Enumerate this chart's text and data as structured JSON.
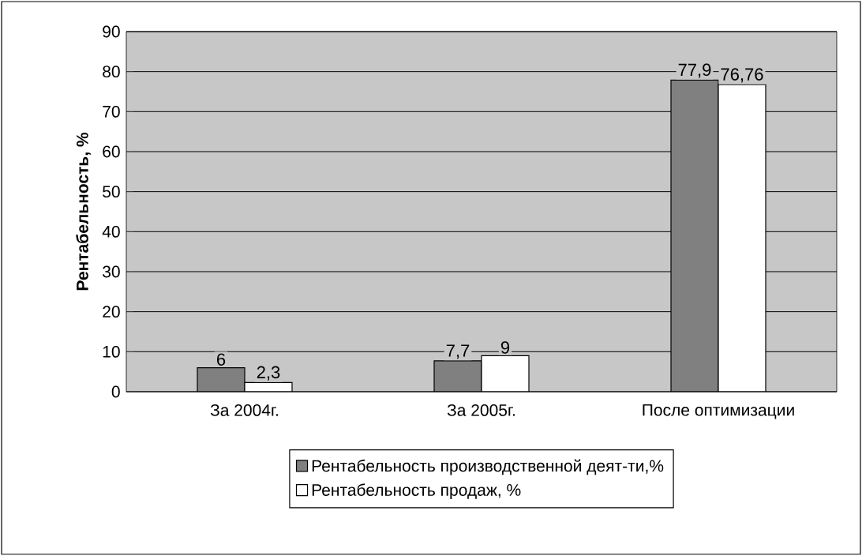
{
  "chart_data": {
    "type": "bar",
    "categories": [
      "За 2004г.",
      "За 2005г.",
      "После оптимизации"
    ],
    "ylabel": "Рентабельность, %",
    "ylim": [
      0,
      90
    ],
    "yticks": [
      0,
      10,
      20,
      30,
      40,
      50,
      60,
      70,
      80,
      90
    ],
    "grid": "y",
    "legend": "bottom",
    "series": [
      {
        "name": "Рентабельность производственной деят-ти,%",
        "color": "#808080",
        "values": [
          6,
          7.7,
          77.9
        ],
        "value_labels": [
          "6",
          "7,7",
          "77,9"
        ]
      },
      {
        "name": "Рентабельность продаж, %",
        "color": "#ffffff",
        "values": [
          2.3,
          9,
          76.76
        ],
        "value_labels": [
          "2,3",
          "9",
          "76,76"
        ]
      }
    ]
  }
}
